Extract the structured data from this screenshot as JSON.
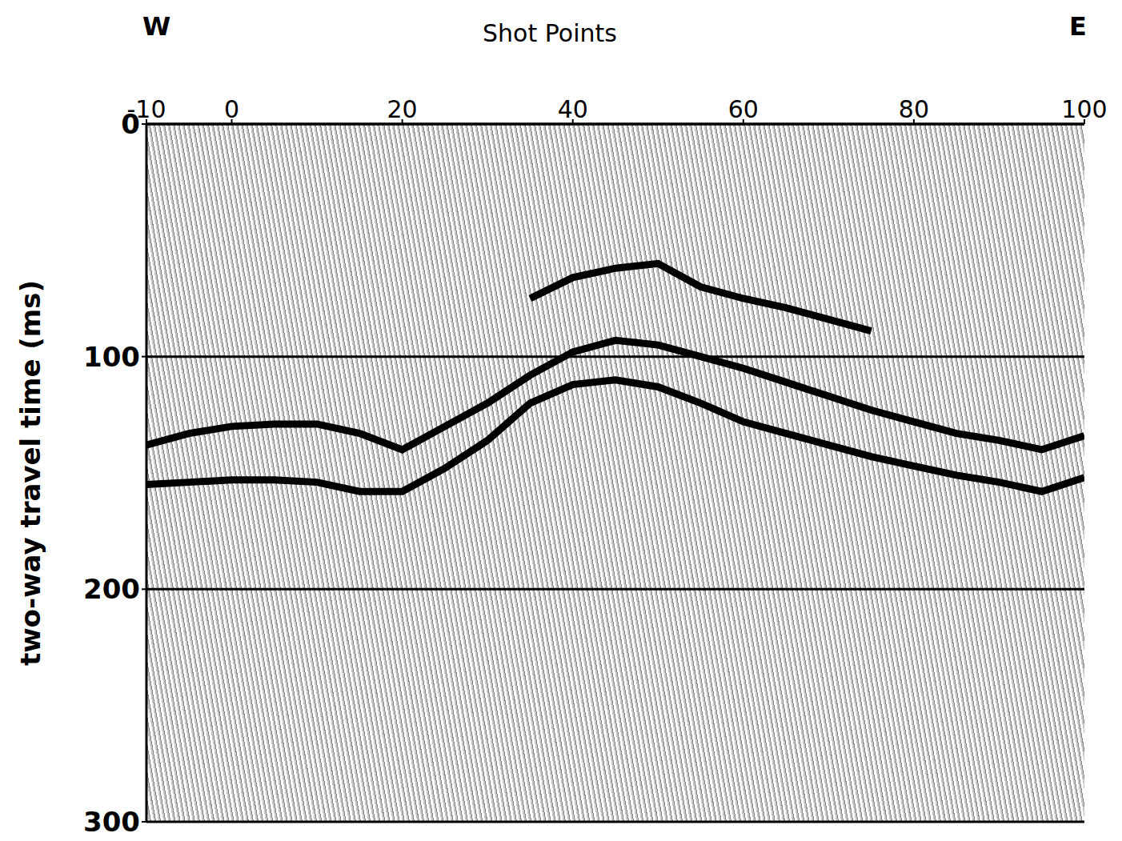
{
  "chart_data": {
    "type": "line",
    "x_label": "Shot Points",
    "y_label": "two-way travel time (ms)",
    "annotations": [
      "W",
      "E"
    ],
    "xlim": [
      -10,
      100
    ],
    "xticks": [
      -10,
      0,
      20,
      40,
      60,
      80,
      100
    ],
    "ylim": [
      0,
      300
    ],
    "yticks": [
      0,
      100,
      200,
      300
    ],
    "grid": true,
    "x": [
      -10,
      -5,
      0,
      5,
      10,
      15,
      20,
      25,
      30,
      35,
      40,
      45,
      50,
      55,
      60,
      65,
      70,
      75,
      80,
      85,
      90,
      95,
      100
    ],
    "series": [
      {
        "color": "#000000",
        "values": [
          138,
          133,
          130,
          129,
          129,
          133,
          140,
          130,
          120,
          108,
          98,
          93,
          95,
          100,
          105,
          111,
          117,
          123,
          128,
          133,
          136,
          140,
          134
        ]
      },
      {
        "color": "#000000",
        "values": [
          155,
          154,
          153,
          153,
          154,
          158,
          158,
          148,
          136,
          120,
          112,
          110,
          113,
          120,
          128,
          133,
          138,
          143,
          147,
          151,
          154,
          158,
          152
        ]
      },
      {
        "color": "#000000",
        "values": [
          null,
          null,
          null,
          null,
          null,
          null,
          null,
          null,
          null,
          75,
          66,
          62,
          60,
          70,
          75,
          79,
          84,
          89,
          null,
          null,
          null,
          null,
          null
        ]
      }
    ]
  }
}
